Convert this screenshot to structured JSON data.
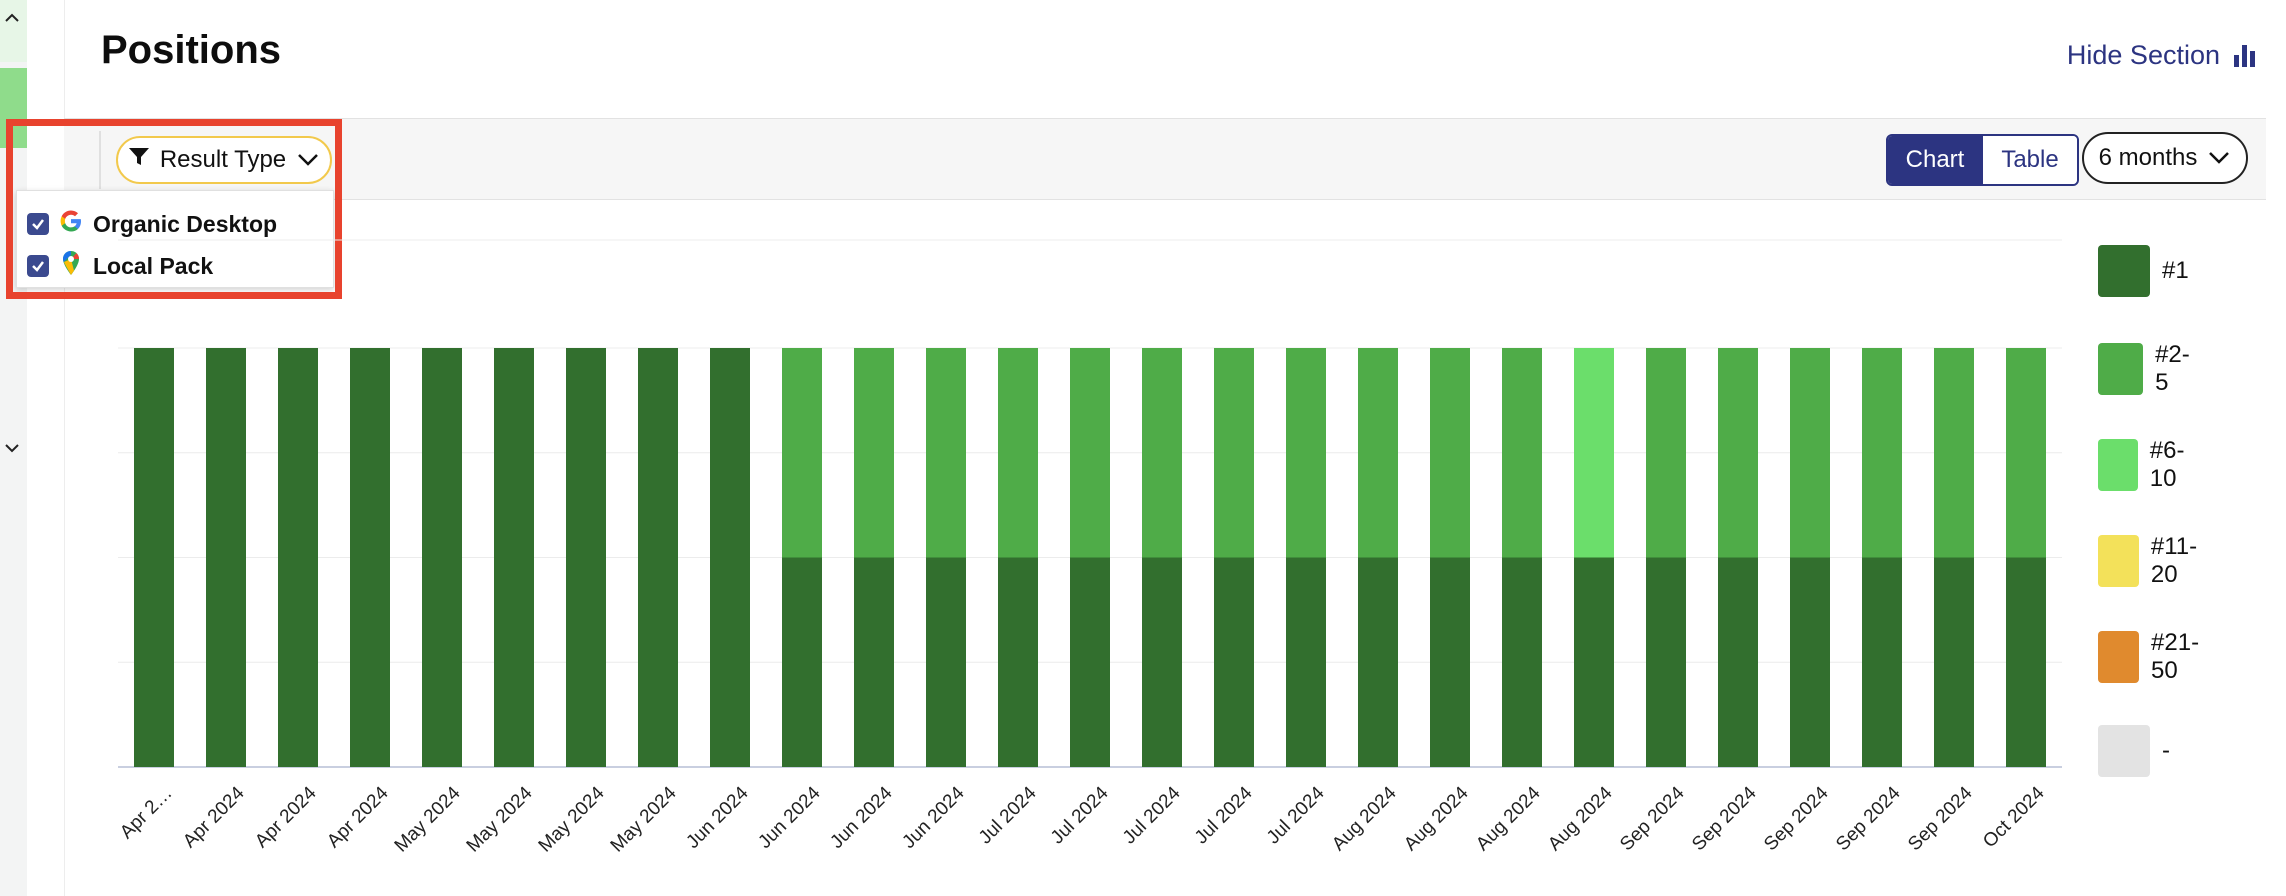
{
  "page": {
    "title": "Positions",
    "hide_section_label": "Hide Section"
  },
  "toolbar": {
    "filter_label": "Result Type",
    "view_tabs": [
      {
        "label": "Chart",
        "active": true
      },
      {
        "label": "Table",
        "active": false
      }
    ],
    "period_label": "6 months"
  },
  "filter_dropdown": {
    "options": [
      {
        "label": "Organic Desktop",
        "checked": true,
        "icon": "google-icon"
      },
      {
        "label": "Local Pack",
        "checked": true,
        "icon": "map-pin-icon"
      }
    ]
  },
  "chart_data": {
    "type": "bar",
    "stacked": true,
    "percent_stacked": true,
    "categories": [
      "Apr 2…",
      "Apr 2024",
      "Apr 2024",
      "Apr 2024",
      "May 2024",
      "May 2024",
      "May 2024",
      "May 2024",
      "Jun 2024",
      "Jun 2024",
      "Jun 2024",
      "Jun 2024",
      "Jul 2024",
      "Jul 2024",
      "Jul 2024",
      "Jul 2024",
      "Jul 2024",
      "Aug 2024",
      "Aug 2024",
      "Aug 2024",
      "Aug 2024",
      "Sep 2024",
      "Sep 2024",
      "Sep 2024",
      "Sep 2024",
      "Sep 2024",
      "Oct 2024"
    ],
    "series": [
      {
        "name": "#1",
        "color": "#326f2e",
        "values": [
          100,
          100,
          100,
          100,
          100,
          100,
          100,
          100,
          100,
          50,
          50,
          50,
          50,
          50,
          50,
          50,
          50,
          50,
          50,
          50,
          50,
          50,
          50,
          50,
          50,
          50,
          50
        ]
      },
      {
        "name": "#2-5",
        "color": "#4fac48",
        "values": [
          0,
          0,
          0,
          0,
          0,
          0,
          0,
          0,
          0,
          50,
          50,
          50,
          50,
          50,
          50,
          50,
          50,
          50,
          50,
          50,
          0,
          50,
          50,
          50,
          50,
          50,
          50
        ]
      },
      {
        "name": "#6-10",
        "color": "#6bde6b",
        "values": [
          0,
          0,
          0,
          0,
          0,
          0,
          0,
          0,
          0,
          0,
          0,
          0,
          0,
          0,
          0,
          0,
          0,
          0,
          0,
          0,
          50,
          0,
          0,
          0,
          0,
          0,
          0
        ]
      },
      {
        "name": "#11-20",
        "color": "#f3e15a",
        "values": [
          0,
          0,
          0,
          0,
          0,
          0,
          0,
          0,
          0,
          0,
          0,
          0,
          0,
          0,
          0,
          0,
          0,
          0,
          0,
          0,
          0,
          0,
          0,
          0,
          0,
          0,
          0
        ]
      },
      {
        "name": "#21-50",
        "color": "#e08a2e",
        "values": [
          0,
          0,
          0,
          0,
          0,
          0,
          0,
          0,
          0,
          0,
          0,
          0,
          0,
          0,
          0,
          0,
          0,
          0,
          0,
          0,
          0,
          0,
          0,
          0,
          0,
          0,
          0
        ]
      },
      {
        "name": "-",
        "color": "#e3e3e3",
        "values": [
          0,
          0,
          0,
          0,
          0,
          0,
          0,
          0,
          0,
          0,
          0,
          0,
          0,
          0,
          0,
          0,
          0,
          0,
          0,
          0,
          0,
          0,
          0,
          0,
          0,
          0,
          0
        ]
      }
    ],
    "ylim": [
      0,
      100
    ],
    "grid": true,
    "legend_position": "right"
  }
}
